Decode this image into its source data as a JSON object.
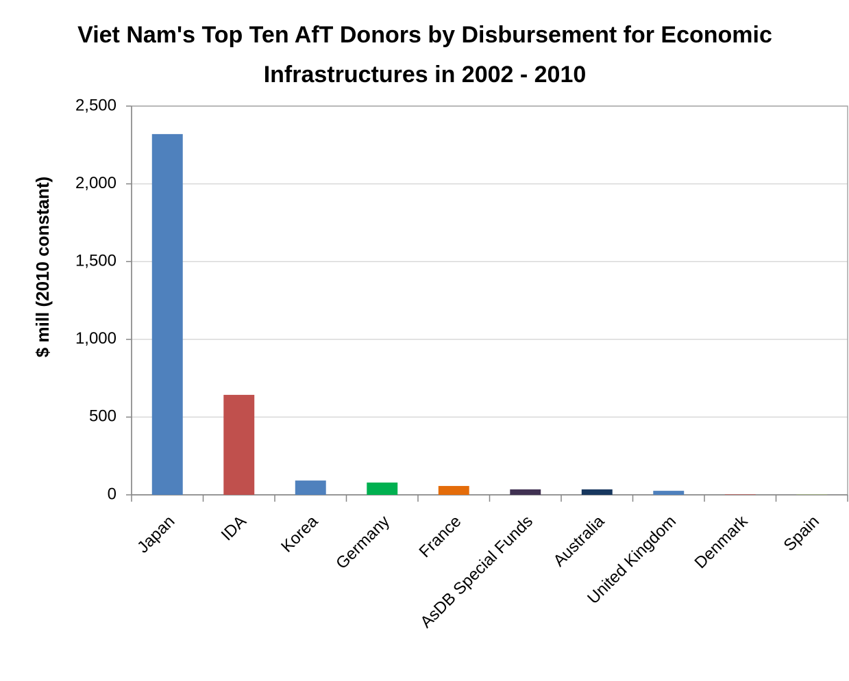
{
  "chart_data": {
    "type": "bar",
    "title": "Viet Nam's Top Ten AfT Donors by Disbursement for Economic Infrastructures in 2002 - 2010",
    "y_label": "$ mill (2010 constant)",
    "categories": [
      "Japan",
      "IDA",
      "Korea",
      "Germany",
      "France",
      "AsDB Special Funds",
      "Australia",
      "United Kingdom",
      "Denmark",
      "Spain"
    ],
    "values": [
      2320,
      643,
      92,
      79,
      57,
      35,
      35,
      26,
      3,
      2
    ],
    "colors": [
      "#4f81bd",
      "#c0504d",
      "#4f81bd",
      "#00b050",
      "#e46c0a",
      "#403152",
      "#17375e",
      "#4f81bd",
      "#c0504d",
      "#9bbb59"
    ],
    "ylim": [
      0,
      2500
    ],
    "yticks": [
      0,
      500,
      {
        "value": 1000,
        "label": "1,000"
      },
      {
        "value": 1500,
        "label": "1,500"
      },
      {
        "value": 2000,
        "label": "2,000"
      },
      {
        "value": 2500,
        "label": "2,500"
      }
    ],
    "grid": true
  }
}
